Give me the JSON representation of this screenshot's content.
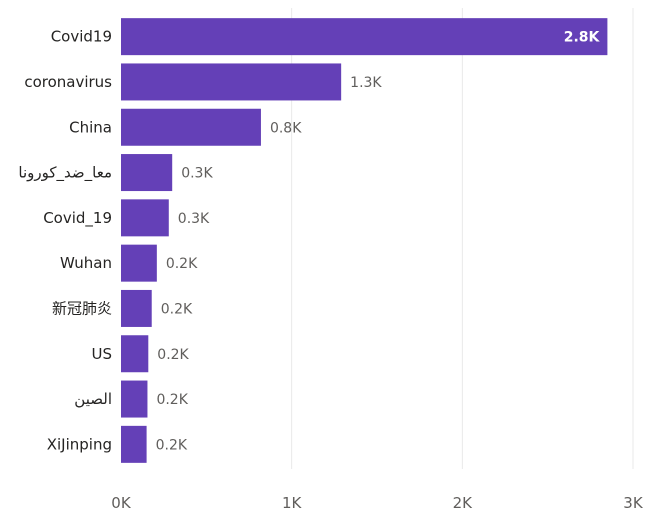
{
  "chart_data": {
    "type": "bar",
    "orientation": "horizontal",
    "categories": [
      "Covid19",
      "coronavirus",
      "China",
      "معا_ضد_كورونا",
      "Covid_19",
      "Wuhan",
      "新冠肺炎",
      "US",
      "الصين",
      "XiJinping"
    ],
    "values": [
      2850,
      1290,
      820,
      300,
      280,
      210,
      180,
      160,
      155,
      150
    ],
    "value_labels": [
      "2.8K",
      "1.3K",
      "0.8K",
      "0.3K",
      "0.3K",
      "0.2K",
      "0.2K",
      "0.2K",
      "0.2K",
      "0.2K"
    ],
    "xlim": [
      0,
      3000
    ],
    "x_ticks": [
      0,
      1000,
      2000,
      3000
    ],
    "x_tick_labels": [
      "0K",
      "1K",
      "2K",
      "3K"
    ],
    "title": "",
    "xlabel": "",
    "ylabel": "",
    "grid": true,
    "colors": {
      "bar": "#6440b7",
      "grid": "#e9e9e9",
      "label": "#252423",
      "value_label": "#605e5c"
    }
  }
}
